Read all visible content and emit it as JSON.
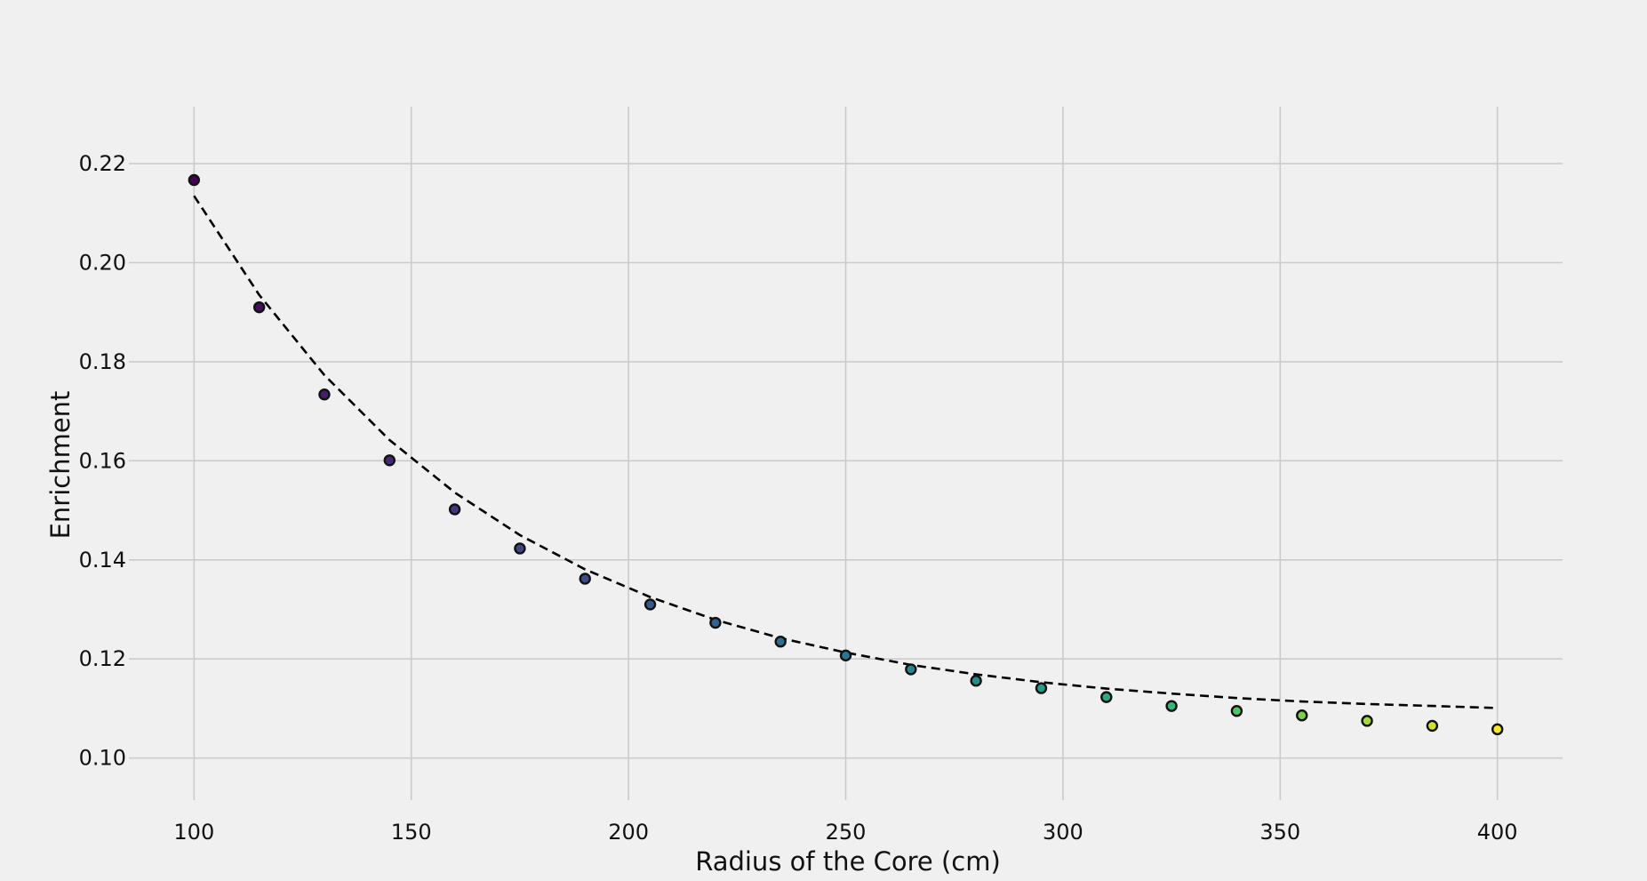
{
  "chart_data": {
    "type": "scatter",
    "title": "",
    "xlabel": "Radius of the Core (cm)",
    "ylabel": "Enrichment",
    "xlim": [
      85,
      415
    ],
    "ylim": [
      0.0915,
      0.2315
    ],
    "xticks": [
      100,
      150,
      200,
      250,
      300,
      350,
      400
    ],
    "yticks": [
      0.1,
      0.12,
      0.14,
      0.16,
      0.18,
      0.2,
      0.22
    ],
    "xtick_labels": [
      "100",
      "150",
      "200",
      "250",
      "300",
      "350",
      "400"
    ],
    "ytick_labels": [
      "0.10",
      "0.12",
      "0.14",
      "0.16",
      "0.18",
      "0.20",
      "0.22"
    ],
    "grid": true,
    "series": [
      {
        "kind": "points",
        "colormap": "viridis",
        "x": [
          100,
          115,
          130,
          145,
          160,
          175,
          190,
          205,
          220,
          235,
          250,
          265,
          280,
          295,
          310,
          325,
          340,
          355,
          370,
          385,
          400
        ],
        "y": [
          0.2167,
          0.191,
          0.1734,
          0.1601,
          0.1502,
          0.1423,
          0.1362,
          0.131,
          0.1273,
          0.1235,
          0.1207,
          0.1179,
          0.1156,
          0.1141,
          0.1123,
          0.1105,
          0.1095,
          0.1086,
          0.1075,
          0.1065,
          0.1058
        ]
      },
      {
        "kind": "fit-curve",
        "line_style": "dashed",
        "color": "#000000",
        "x": [
          100,
          115,
          130,
          145,
          160,
          175,
          190,
          205,
          220,
          235,
          250,
          265,
          280,
          295,
          310,
          325,
          340,
          355,
          370,
          385,
          400
        ],
        "y": [
          0.2135,
          0.1935,
          0.1773,
          0.1642,
          0.1536,
          0.145,
          0.1381,
          0.1325,
          0.1279,
          0.1242,
          0.1213,
          0.1188,
          0.1169,
          0.1153,
          0.114,
          0.113,
          0.1121,
          0.1114,
          0.1109,
          0.1105,
          0.1101
        ]
      }
    ]
  }
}
